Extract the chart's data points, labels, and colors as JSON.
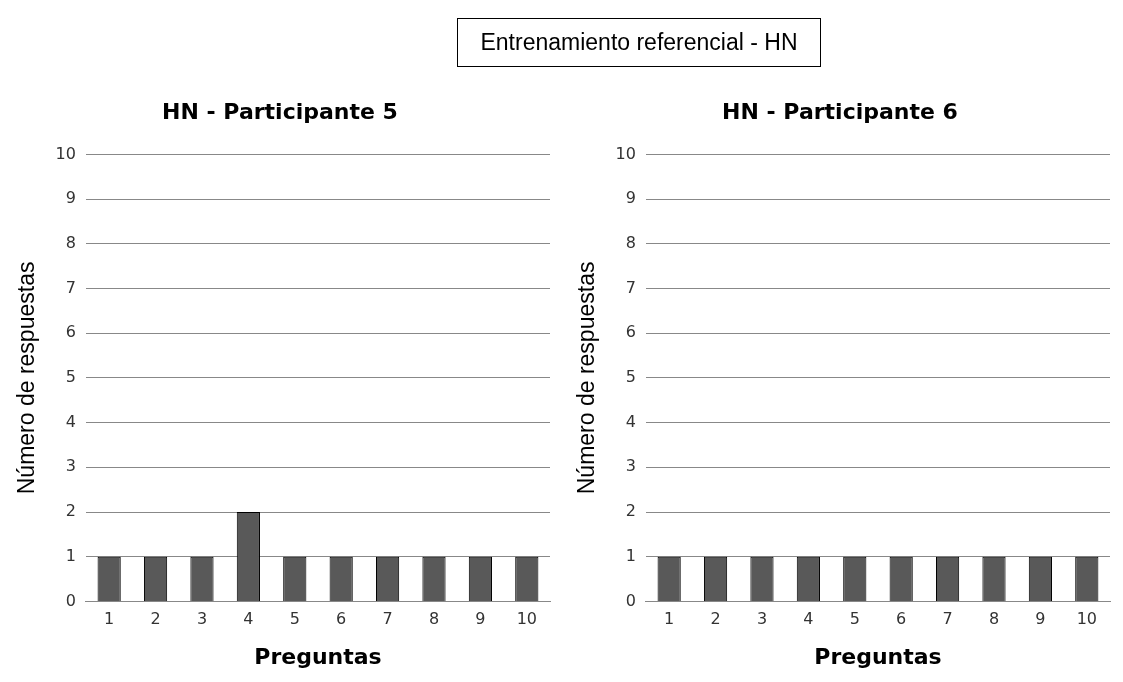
{
  "chart_data": [
    {
      "type": "bar",
      "title": "HN - Participante 5",
      "xlabel": "Preguntas",
      "ylabel": "Número de respuestas",
      "annotations": [
        "Entrenamiento referencial - HN"
      ],
      "categories": [
        "1",
        "2",
        "3",
        "4",
        "5",
        "6",
        "7",
        "8",
        "9",
        "10"
      ],
      "values": [
        1,
        1,
        1,
        2,
        1,
        1,
        1,
        1,
        1,
        1
      ],
      "color": "#595959",
      "ylim": [
        0,
        10
      ],
      "yticks": [
        0,
        1,
        2,
        3,
        4,
        5,
        6,
        7,
        8,
        9,
        10
      ],
      "grid": "y"
    },
    {
      "type": "bar",
      "title": "HN - Participante 6",
      "xlabel": "Preguntas",
      "ylabel": "Número de respuestas",
      "categories": [
        "1",
        "2",
        "3",
        "4",
        "5",
        "6",
        "7",
        "8",
        "9",
        "10"
      ],
      "values": [
        1,
        1,
        1,
        1,
        1,
        1,
        1,
        1,
        1,
        1
      ],
      "color": "#595959",
      "ylim": [
        0,
        10
      ],
      "yticks": [
        0,
        1,
        2,
        3,
        4,
        5,
        6,
        7,
        8,
        9,
        10
      ],
      "grid": "y"
    }
  ]
}
